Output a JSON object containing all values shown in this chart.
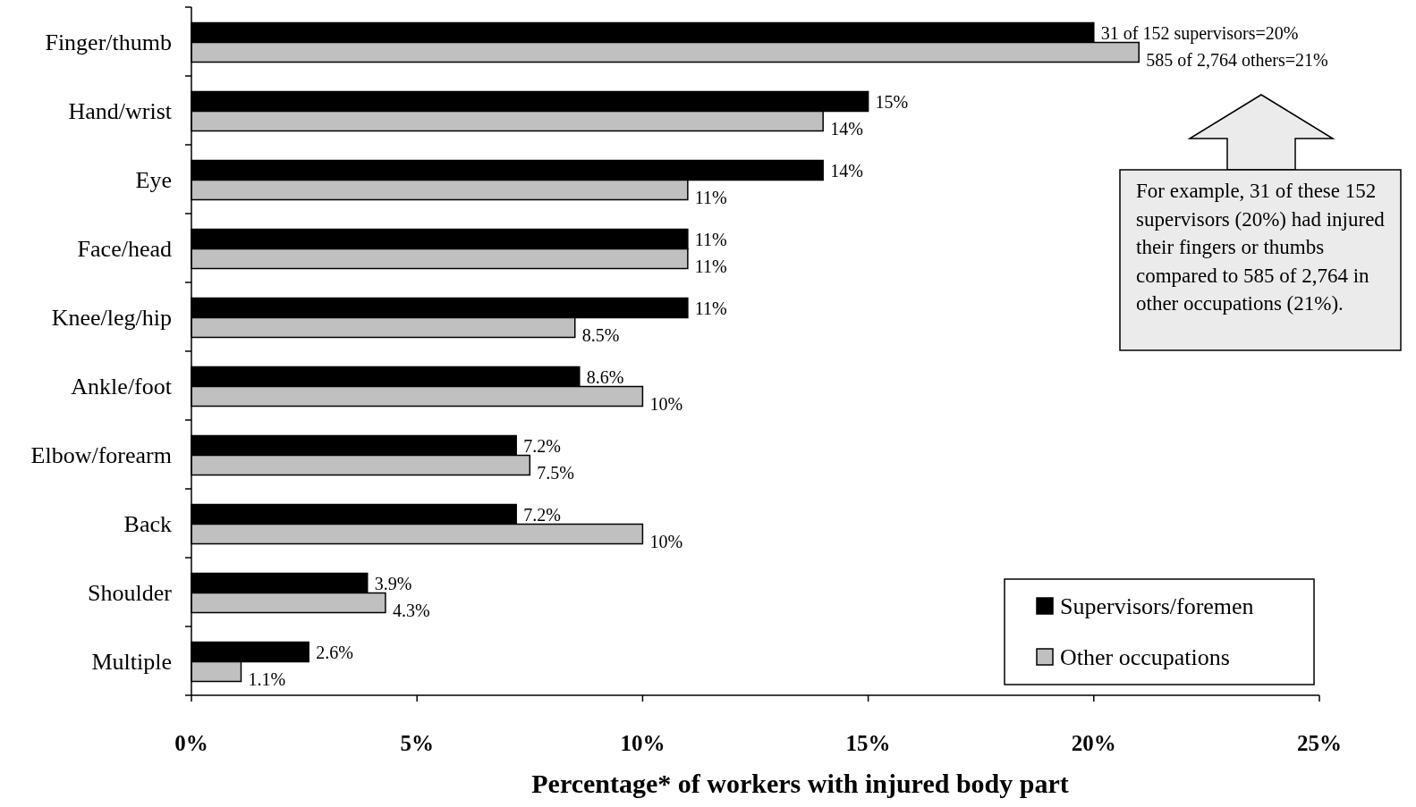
{
  "chart_data": {
    "type": "bar",
    "orientation": "horizontal",
    "categories": [
      "Finger/thumb",
      "Hand/wrist",
      "Eye",
      "Face/head",
      "Knee/leg/hip",
      "Ankle/foot",
      "Elbow/forearm",
      "Back",
      "Shoulder",
      "Multiple"
    ],
    "series": [
      {
        "name": "Supervisors/foremen",
        "color": "#000000",
        "values": [
          20,
          15,
          14,
          11,
          11,
          8.6,
          7.2,
          7.2,
          3.9,
          2.6
        ],
        "value_labels": [
          "31 of 152 supervisors=20%",
          "15%",
          "14%",
          "11%",
          "11%",
          "8.6%",
          "7.2%",
          "7.2%",
          "3.9%",
          "2.6%"
        ]
      },
      {
        "name": "Other occupations",
        "color": "#c0c0c0",
        "values": [
          21,
          14,
          11,
          11,
          8.5,
          10,
          7.5,
          10,
          4.3,
          1.1
        ],
        "value_labels": [
          "585 of 2,764 others=21%",
          "14%",
          "11%",
          "11%",
          "8.5%",
          "10%",
          "7.5%",
          "10%",
          "4.3%",
          "1.1%"
        ]
      }
    ],
    "xlim": [
      0,
      25
    ],
    "xticks": [
      {
        "value": 0,
        "label": "0%"
      },
      {
        "value": 5,
        "label": "5%"
      },
      {
        "value": 10,
        "label": "10%"
      },
      {
        "value": 15,
        "label": "15%"
      },
      {
        "value": 20,
        "label": "20%"
      },
      {
        "value": 25,
        "label": "25%"
      }
    ],
    "xlabel": "Percentage* of workers with injured body part",
    "legend": "bottom right",
    "grid": false,
    "annotations": [
      "For example, 31 of these 152 supervisors (20%) had injured their fingers or thumbs compared to 585 of 2,764 in other occupations (21%)."
    ]
  }
}
